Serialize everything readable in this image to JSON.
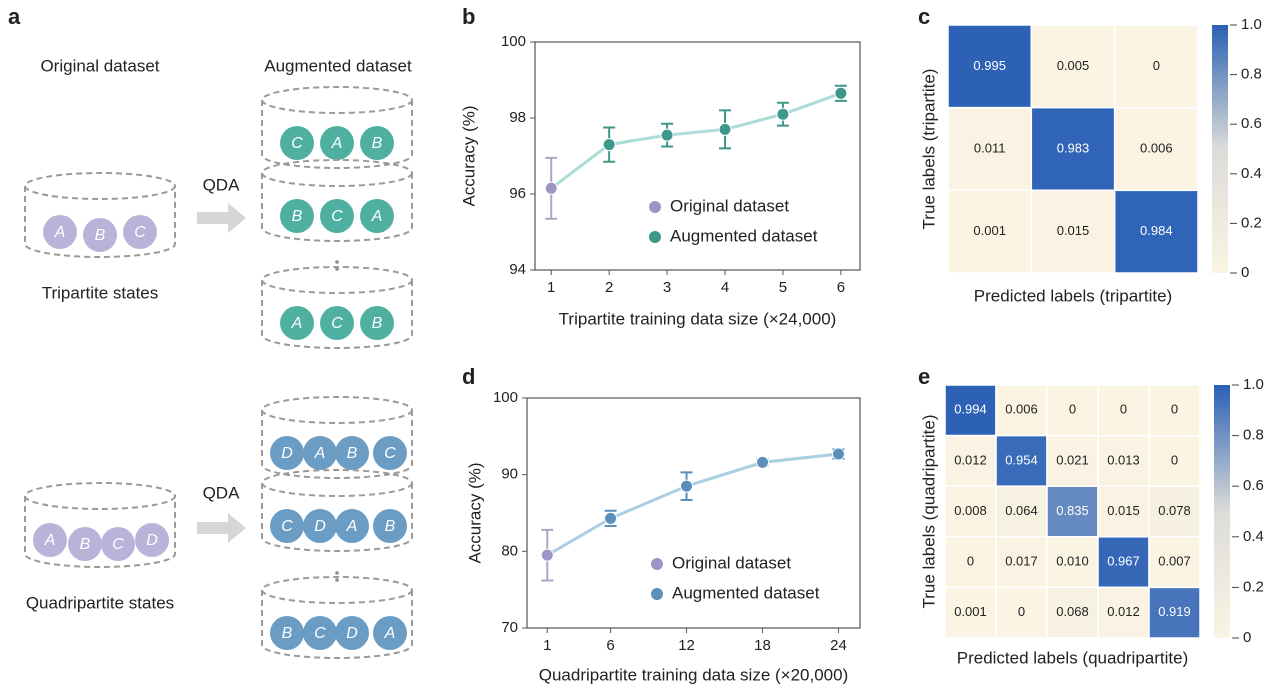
{
  "diagram": {
    "panel": "a",
    "original_title": "Original dataset",
    "augmented_title": "Augmented dataset",
    "rows": [
      {
        "label": "Tripartite states",
        "operation": "QDA",
        "original": [
          "A",
          "B",
          "C"
        ],
        "augmented": [
          [
            "C",
            "A",
            "B"
          ],
          [
            "B",
            "C",
            "A"
          ],
          [
            "A",
            "C",
            "B"
          ]
        ]
      },
      {
        "label": "Quadripartite states",
        "operation": "QDA",
        "original": [
          "A",
          "B",
          "C",
          "D"
        ],
        "augmented": [
          [
            "D",
            "A",
            "B",
            "C"
          ],
          [
            "C",
            "D",
            "A",
            "B"
          ],
          [
            "B",
            "C",
            "D",
            "A"
          ]
        ]
      }
    ]
  },
  "chart_data": [
    {
      "type": "line",
      "panel": "b",
      "xlabel": "Tripartite training data size (×24,000)",
      "ylabel": "Accuracy (%)",
      "x": [
        1,
        2,
        3,
        4,
        5,
        6
      ],
      "xlim": [
        0.72,
        6.33
      ],
      "xticks": [
        1,
        2,
        3,
        4,
        5,
        6
      ],
      "ylim": [
        94,
        100
      ],
      "yticks": [
        94,
        96,
        98,
        100
      ],
      "line_color": "#acdcd7",
      "series": [
        {
          "name": "Original dataset",
          "color": "#9d95c6",
          "values": [
            96.15,
            null,
            null,
            null,
            null,
            null
          ],
          "errors": [
            0.8,
            null,
            null,
            null,
            null,
            null
          ]
        },
        {
          "name": "Augmented dataset",
          "color": "#3d978a",
          "values": [
            null,
            97.3,
            97.55,
            97.7,
            98.1,
            98.65
          ],
          "errors": [
            null,
            0.45,
            0.3,
            0.5,
            0.3,
            0.2
          ]
        }
      ]
    },
    {
      "type": "line",
      "panel": "d",
      "xlabel": "Quadripartite training data size (×20,000)",
      "ylabel": "Accuracy (%)",
      "x": [
        1,
        6,
        12,
        18,
        24
      ],
      "xlim": [
        -0.6,
        25.7
      ],
      "xticks": [
        1,
        6,
        12,
        18,
        24
      ],
      "ylim": [
        70,
        100
      ],
      "yticks": [
        70,
        80,
        90,
        100
      ],
      "line_color": "#abcfe2",
      "series": [
        {
          "name": "Original dataset",
          "color": "#9d95c6",
          "values": [
            79.5,
            null,
            null,
            null,
            null
          ],
          "errors": [
            3.3,
            null,
            null,
            null,
            null
          ]
        },
        {
          "name": "Augmented dataset",
          "color": "#5b8fba",
          "values": [
            null,
            84.3,
            88.5,
            91.6,
            92.7
          ],
          "errors": [
            null,
            1.0,
            1.8,
            0.4,
            0.6
          ]
        }
      ]
    },
    {
      "type": "heatmap",
      "panel": "c",
      "xlabel": "Predicted labels (tripartite)",
      "ylabel": "True labels (tripartite)",
      "values": [
        [
          0.995,
          0.005,
          0
        ],
        [
          0.011,
          0.983,
          0.006
        ],
        [
          0.001,
          0.015,
          0.984
        ]
      ],
      "clim": [
        0,
        1
      ],
      "cticks": [
        0,
        0.2,
        0.4,
        0.6,
        0.8,
        {
          "value": 1,
          "label": "1.0"
        }
      ],
      "colormap": [
        "#fbf4e3",
        "#dcdcd8",
        "#2a60b5"
      ]
    },
    {
      "type": "heatmap",
      "panel": "e",
      "xlabel": "Predicted labels (quadripartite)",
      "ylabel": "True labels (quadripartite)",
      "values": [
        [
          0.994,
          0.006,
          0,
          0,
          0
        ],
        [
          0.012,
          0.954,
          0.021,
          0.013,
          0
        ],
        [
          0.008,
          0.064,
          0.835,
          0.015,
          0.078
        ],
        [
          0,
          0.017,
          0.01,
          0.967,
          0.007
        ],
        [
          0.001,
          0,
          0.068,
          0.012,
          0.919
        ]
      ],
      "value_labels": [
        [
          "0.994",
          "0.006",
          "0",
          "0",
          "0"
        ],
        [
          "0.012",
          "0.954",
          "0.021",
          "0.013",
          "0"
        ],
        [
          "0.008",
          "0.064",
          "0.835",
          "0.015",
          "0.078"
        ],
        [
          "0",
          "0.017",
          "0.010",
          "0.967",
          "0.007"
        ],
        [
          "0.001",
          "0",
          "0.068",
          "0.012",
          "0.919"
        ]
      ],
      "clim": [
        0,
        1
      ],
      "cticks": [
        0,
        0.2,
        0.4,
        0.6,
        0.8,
        {
          "value": 1,
          "label": "1.0"
        }
      ],
      "colormap": [
        "#fbf4e3",
        "#dcdcd8",
        "#2a60b5"
      ]
    }
  ]
}
